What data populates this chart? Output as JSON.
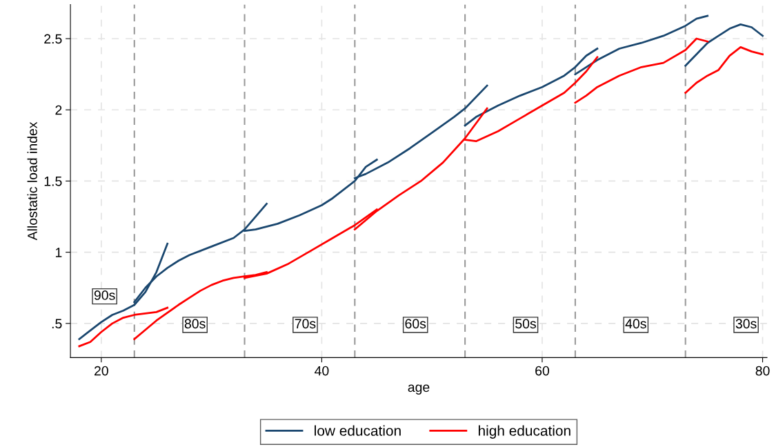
{
  "chart_data": {
    "type": "line",
    "xlabel": "age",
    "ylabel": "Allostatic load index",
    "xlim": [
      17.2,
      80.4
    ],
    "ylim": [
      0.26,
      2.74
    ],
    "xticks": [
      20,
      40,
      60,
      80
    ],
    "yticks": [
      {
        "value": 0.5,
        "label": ".5"
      },
      1,
      1.5,
      2,
      2.5
    ],
    "grid": true,
    "legend": "bottom",
    "line_style": "solid",
    "marker": "none",
    "series": [
      {
        "name": "low education",
        "color": "#1a476f",
        "x": [
          18,
          19,
          20,
          21,
          22,
          23,
          24,
          25,
          26
        ],
        "values": [
          0.39,
          0.45,
          0.51,
          0.56,
          0.59,
          0.63,
          0.72,
          0.86,
          1.06
        ]
      },
      {
        "color": "#1a476f",
        "x": [
          23,
          24,
          25,
          26,
          27,
          28,
          30,
          32,
          33,
          34,
          35
        ],
        "values": [
          0.65,
          0.75,
          0.83,
          0.89,
          0.94,
          0.98,
          1.04,
          1.1,
          1.16,
          1.25,
          1.34
        ]
      },
      {
        "color": "#1a476f",
        "x": [
          33,
          34,
          36,
          38,
          40,
          41,
          43,
          44,
          45
        ],
        "values": [
          1.15,
          1.16,
          1.2,
          1.26,
          1.33,
          1.38,
          1.5,
          1.6,
          1.65
        ]
      },
      {
        "color": "#1a476f",
        "x": [
          43,
          44,
          46,
          48,
          50,
          52,
          53,
          55
        ],
        "values": [
          1.52,
          1.55,
          1.63,
          1.73,
          1.84,
          1.95,
          2.01,
          2.17
        ]
      },
      {
        "color": "#1a476f",
        "x": [
          53,
          54,
          56,
          58,
          60,
          62,
          63,
          64,
          65
        ],
        "values": [
          1.89,
          1.95,
          2.03,
          2.1,
          2.16,
          2.24,
          2.3,
          2.38,
          2.43
        ]
      },
      {
        "color": "#1a476f",
        "x": [
          63,
          64,
          65,
          67,
          69,
          71,
          73,
          74,
          75
        ],
        "values": [
          2.25,
          2.3,
          2.35,
          2.43,
          2.47,
          2.52,
          2.59,
          2.64,
          2.66
        ]
      },
      {
        "color": "#1a476f",
        "x": [
          73,
          74,
          75,
          76,
          77,
          78,
          79,
          80
        ],
        "values": [
          2.31,
          2.39,
          2.47,
          2.52,
          2.57,
          2.6,
          2.58,
          2.52
        ]
      },
      {
        "name": "high education",
        "color": "#ff0000",
        "x": [
          18,
          19,
          20,
          21,
          22,
          23,
          24,
          25,
          26
        ],
        "values": [
          0.34,
          0.37,
          0.44,
          0.5,
          0.54,
          0.56,
          0.57,
          0.58,
          0.61
        ]
      },
      {
        "color": "#ff0000",
        "x": [
          23,
          25,
          27,
          28,
          29,
          30,
          31,
          32,
          33,
          34,
          35
        ],
        "values": [
          0.39,
          0.52,
          0.63,
          0.68,
          0.73,
          0.77,
          0.8,
          0.82,
          0.83,
          0.84,
          0.86
        ]
      },
      {
        "color": "#ff0000",
        "x": [
          33,
          35,
          37,
          39,
          41,
          43,
          45
        ],
        "values": [
          0.82,
          0.85,
          0.92,
          1.01,
          1.1,
          1.19,
          1.3
        ]
      },
      {
        "color": "#ff0000",
        "x": [
          43,
          45,
          47,
          49,
          51,
          53,
          55
        ],
        "values": [
          1.16,
          1.29,
          1.4,
          1.5,
          1.63,
          1.8,
          2.01
        ]
      },
      {
        "color": "#ff0000",
        "x": [
          53,
          54,
          56,
          58,
          60,
          62,
          63,
          64,
          65
        ],
        "values": [
          1.79,
          1.78,
          1.85,
          1.94,
          2.03,
          2.12,
          2.19,
          2.27,
          2.37
        ]
      },
      {
        "color": "#ff0000",
        "x": [
          63,
          64,
          65,
          67,
          69,
          71,
          73,
          74,
          75
        ],
        "values": [
          2.05,
          2.1,
          2.16,
          2.24,
          2.3,
          2.33,
          2.42,
          2.5,
          2.48
        ]
      },
      {
        "color": "#ff0000",
        "x": [
          73,
          74,
          75,
          76,
          77,
          78,
          79,
          80
        ],
        "values": [
          2.12,
          2.19,
          2.24,
          2.28,
          2.38,
          2.44,
          2.41,
          2.39
        ]
      }
    ],
    "ref_lines": [
      {
        "axis": "x",
        "value": 23,
        "color": "#999999",
        "line_style": "dashed"
      },
      {
        "axis": "x",
        "value": 33,
        "color": "#999999",
        "line_style": "dashed"
      },
      {
        "axis": "x",
        "value": 43,
        "color": "#999999",
        "line_style": "dashed"
      },
      {
        "axis": "x",
        "value": 53,
        "color": "#999999",
        "line_style": "dashed"
      },
      {
        "axis": "x",
        "value": 63,
        "color": "#999999",
        "line_style": "dashed"
      },
      {
        "axis": "x",
        "value": 73,
        "color": "#999999",
        "line_style": "dashed"
      }
    ],
    "annotations": [
      {
        "text": "90s",
        "x": 20.3,
        "y": 0.69
      },
      {
        "text": "80s",
        "x": 28.5,
        "y": 0.49
      },
      {
        "text": "70s",
        "x": 38.5,
        "y": 0.49
      },
      {
        "text": "60s",
        "x": 48.5,
        "y": 0.49
      },
      {
        "text": "50s",
        "x": 58.5,
        "y": 0.49
      },
      {
        "text": "40s",
        "x": 68.5,
        "y": 0.49
      },
      {
        "text": "30s",
        "x": 78.5,
        "y": 0.49
      }
    ]
  }
}
